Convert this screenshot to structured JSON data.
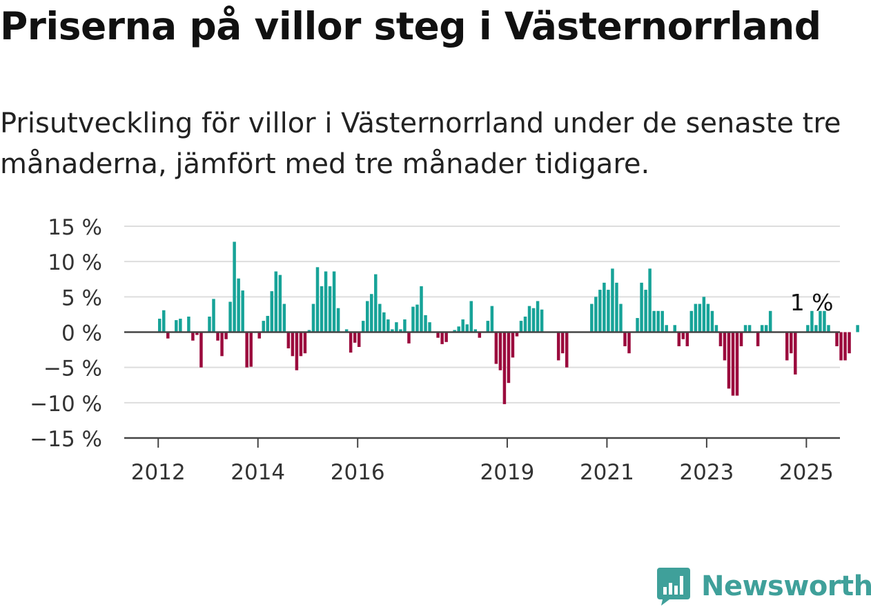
{
  "title": "Priserna på villor steg i Västernorrland",
  "subtitle": "Prisutveckling för villor i Västernorrland under de senaste tre månaderna, jämfört med tre månader tidigare.",
  "brand": {
    "name": "Newsworthy",
    "color": "#3fa09a",
    "icon": "newsworthy-logo-icon"
  },
  "colors": {
    "positive": "#17a398",
    "negative": "#9b0b3d",
    "grid": "#dddddd",
    "axis": "#444444"
  },
  "chart_data": {
    "type": "bar",
    "x_start": "2012-01",
    "x_end": "2025-05",
    "xticks": [
      {
        "label": "2012",
        "date": "2012-01"
      },
      {
        "label": "2014",
        "date": "2014-01"
      },
      {
        "label": "2016",
        "date": "2016-01"
      },
      {
        "label": "2019",
        "date": "2019-01"
      },
      {
        "label": "2021",
        "date": "2021-01"
      },
      {
        "label": "2023",
        "date": "2023-01"
      },
      {
        "label": "2025",
        "date": "2025-01"
      }
    ],
    "ylim": [
      -15,
      15
    ],
    "yticks": [
      {
        "value": 15,
        "label": "15 %"
      },
      {
        "value": 10,
        "label": "10 %"
      },
      {
        "value": 5,
        "label": "5 %"
      },
      {
        "value": 0,
        "label": "0 %"
      },
      {
        "value": -5,
        "label": "−5 %"
      },
      {
        "value": -10,
        "label": "−10 %"
      },
      {
        "value": -15,
        "label": "−15 %"
      }
    ],
    "grid": true,
    "annotation": {
      "text": "1 %",
      "date": "2025-01"
    },
    "series": [
      {
        "values": [
          [
            1.9,
            3.1,
            -0.9,
            0,
            1.7,
            1.9,
            0,
            2.2,
            -1.2,
            -0.4,
            -5.0,
            0,
            2.2,
            4.7,
            -1.2,
            -3.4,
            -1.0,
            4.3,
            12.8,
            7.6,
            5.9,
            -5.0,
            -4.9,
            0
          ],
          [
            -0.9,
            1.6,
            2.3,
            5.8,
            8.6,
            8.1,
            4.0,
            -2.3,
            -3.4,
            -5.4,
            -3.4,
            -3.0,
            0.3,
            4.0,
            9.2,
            6.5,
            8.6,
            6.5,
            8.6,
            3.4,
            0,
            0.4,
            -2.9,
            -1.5
          ],
          [
            -2.1,
            1.6,
            4.4,
            5.4,
            8.2,
            4.0,
            2.8,
            1.8,
            0.4,
            1.4,
            0.4,
            1.8,
            -1.6,
            3.6,
            3.9,
            6.5,
            2.4,
            1.4,
            0,
            -0.8,
            -1.7,
            -1.4,
            0,
            0.3
          ],
          [
            0.8,
            1.8,
            1.1,
            4.4,
            0.4,
            -0.8,
            0,
            1.6,
            3.7,
            -4.5,
            -5.4,
            -10.2,
            -7.2,
            -3.6,
            -0.6,
            1.6,
            2.2,
            3.7,
            3.4,
            4.4,
            3.2,
            0,
            0,
            0
          ],
          [
            -4.0,
            -3.0,
            -5.0,
            0,
            0,
            0,
            0,
            0,
            4.0,
            5.0,
            6.0,
            7.0,
            6.0,
            9.0,
            7.0,
            4.0,
            -2.0,
            -3.0,
            0,
            2.0,
            7.0,
            6.0,
            9.0,
            3.0
          ],
          [
            3.0,
            3.0,
            1.0,
            0,
            1.0,
            -2.0,
            -1.0,
            -2.0,
            3.0,
            4.0,
            4.0,
            5.0,
            4.0,
            3.0,
            1.0,
            -2.0,
            -4.0,
            -8.0,
            -9.0,
            -9.0,
            -2.0,
            1.0,
            1.0,
            0
          ],
          [
            -2.0,
            1.0,
            1.0,
            3.0,
            0,
            0,
            0,
            -4.0,
            -3.0,
            -6.0,
            0,
            0,
            1.0,
            3.0,
            1.0,
            3.0,
            3.0,
            1.0,
            0,
            -2.0,
            -4.0,
            -4.0,
            -3.0,
            0
          ],
          [
            1.0,
            0,
            0,
            0,
            0
          ]
        ]
      }
    ]
  }
}
